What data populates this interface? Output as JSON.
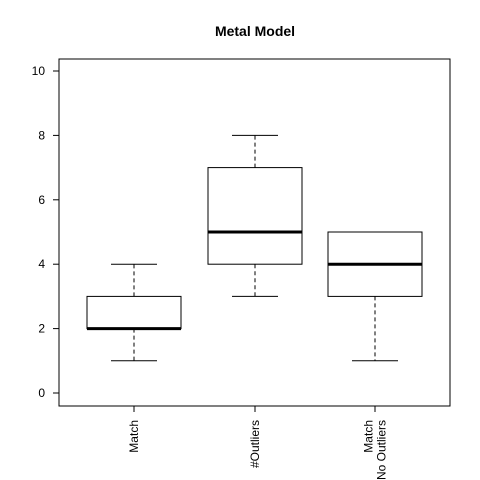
{
  "chart_data": {
    "type": "boxplot",
    "title": "Metal Model",
    "xlabel": "",
    "ylabel": "",
    "ylim": [
      0,
      10
    ],
    "yticks": [
      0,
      2,
      4,
      6,
      8,
      10
    ],
    "grid": false,
    "categories": [
      {
        "label_lines": [
          "Match"
        ]
      },
      {
        "label_lines": [
          "#Outliers"
        ]
      },
      {
        "label_lines": [
          "Match",
          "No Outliers"
        ]
      }
    ],
    "boxes": [
      {
        "whisker_low": 1,
        "q1": 2,
        "median": 2,
        "q3": 3,
        "whisker_high": 4
      },
      {
        "whisker_low": 3,
        "q1": 4,
        "median": 5,
        "q3": 7,
        "whisker_high": 8
      },
      {
        "whisker_low": 1,
        "q1": 3,
        "median": 4,
        "q3": 5,
        "whisker_high": 5
      }
    ],
    "colors": {
      "box_fill": "#ffffff",
      "line": "#000000",
      "background": "#ffffff"
    }
  }
}
